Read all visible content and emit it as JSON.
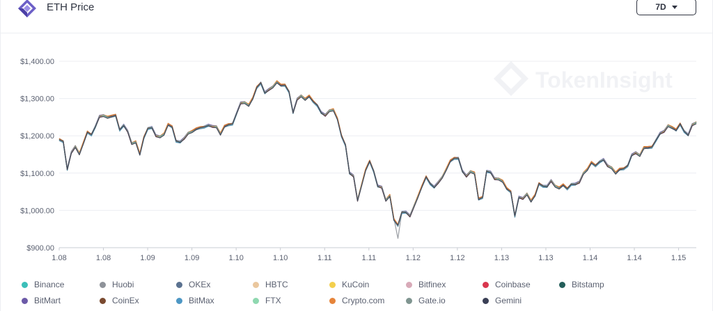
{
  "header": {
    "title": "ETH Price",
    "period_label": "7D"
  },
  "watermark": "TokenInsight",
  "chart_data": {
    "type": "line",
    "title": "ETH Price",
    "xlabel": "",
    "ylabel": "",
    "ylim": [
      900,
      1400
    ],
    "yticks": [
      900,
      1000,
      1100,
      1200,
      1300,
      1400
    ],
    "ytick_labels": [
      "$900.00",
      "$1,000.00",
      "$1,100.00",
      "$1,200.00",
      "$1,300.00",
      "$1,400.00"
    ],
    "xtick_labels": [
      "1.08",
      "1.08",
      "1.09",
      "1.09",
      "1.10",
      "1.10",
      "1.11",
      "1.11",
      "1.12",
      "1.12",
      "1.13",
      "1.13",
      "1.14",
      "1.14",
      "1.15"
    ],
    "grid": true,
    "legend_position": "bottom",
    "price": [
      1190,
      1185,
      1110,
      1155,
      1172,
      1152,
      1180,
      1210,
      1203,
      1225,
      1252,
      1255,
      1250,
      1252,
      1255,
      1216,
      1228,
      1212,
      1180,
      1184,
      1150,
      1195,
      1220,
      1222,
      1200,
      1198,
      1205,
      1230,
      1224,
      1186,
      1183,
      1193,
      1208,
      1212,
      1218,
      1222,
      1224,
      1228,
      1225,
      1225,
      1205,
      1225,
      1230,
      1232,
      1260,
      1288,
      1290,
      1282,
      1300,
      1330,
      1342,
      1315,
      1324,
      1332,
      1345,
      1335,
      1336,
      1318,
      1262,
      1298,
      1308,
      1298,
      1306,
      1292,
      1282,
      1262,
      1255,
      1268,
      1270,
      1245,
      1200,
      1175,
      1100,
      1092,
      1028,
      1068,
      1108,
      1132,
      1105,
      1065,
      1062,
      1028,
      1040,
      975,
      960,
      995,
      995,
      985,
      1012,
      1038,
      1065,
      1090,
      1072,
      1062,
      1075,
      1090,
      1110,
      1132,
      1140,
      1140,
      1105,
      1092,
      1105,
      1100,
      1030,
      1035,
      1105,
      1102,
      1085,
      1085,
      1078,
      1058,
      1050,
      985,
      1035,
      1032,
      1045,
      1025,
      1040,
      1072,
      1065,
      1064,
      1080,
      1066,
      1060,
      1068,
      1058,
      1070,
      1070,
      1076,
      1100,
      1110,
      1128,
      1120,
      1130,
      1136,
      1120,
      1115,
      1100,
      1110,
      1112,
      1120,
      1148,
      1155,
      1148,
      1168,
      1168,
      1170,
      1188,
      1206,
      1212,
      1228,
      1222,
      1215,
      1232,
      1212,
      1202,
      1230,
      1236
    ],
    "series": [
      {
        "name": "Binance",
        "color": "#3cbfb9"
      },
      {
        "name": "Huobi",
        "color": "#8e9299"
      },
      {
        "name": "OKEx",
        "color": "#5b7290"
      },
      {
        "name": "HBTC",
        "color": "#eac79e"
      },
      {
        "name": "KuCoin",
        "color": "#f3cf4d"
      },
      {
        "name": "Bitfinex",
        "color": "#d8aab8"
      },
      {
        "name": "Coinbase",
        "color": "#d9364e"
      },
      {
        "name": "Bitstamp",
        "color": "#235e5a"
      },
      {
        "name": "BitMart",
        "color": "#6c5aa8"
      },
      {
        "name": "CoinEx",
        "color": "#7a4a30"
      },
      {
        "name": "BitMax",
        "color": "#4d97c4"
      },
      {
        "name": "FTX",
        "color": "#8fd8b0"
      },
      {
        "name": "Crypto.com",
        "color": "#e6843a"
      },
      {
        "name": "Gate.io",
        "color": "#7f9590"
      },
      {
        "name": "Gemini",
        "color": "#3a3f55"
      }
    ]
  }
}
